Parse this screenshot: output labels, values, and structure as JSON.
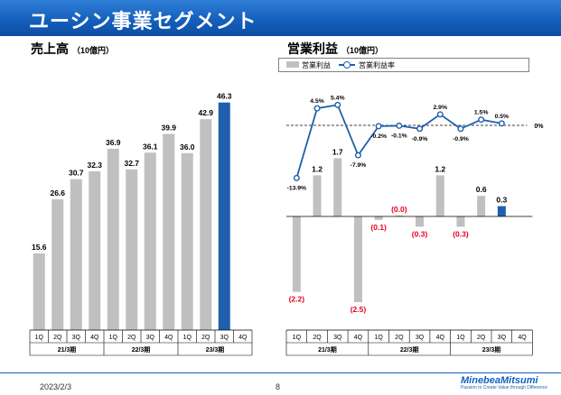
{
  "header": {
    "title": "ユーシン事業セグメント"
  },
  "sales": {
    "title": "売上高",
    "unit": "（10億円）"
  },
  "operating": {
    "title": "営業利益",
    "unit": "（10億円）"
  },
  "legend": {
    "bar_label": "営業利益",
    "line_label": "営業利益率"
  },
  "footer": {
    "date": "2023/2/3",
    "page": "8",
    "logo": "MinebeaMitsumi",
    "tagline": "Passion to Create Value through Difference"
  },
  "colors": {
    "bar": "#c0c0c0",
    "highlight": "#1f5fad",
    "line": "#1f5fad",
    "negative_label": "#e8001c"
  },
  "chart_data": [
    {
      "type": "bar",
      "title": "売上高",
      "categories": [
        "1Q",
        "2Q",
        "3Q",
        "4Q",
        "1Q",
        "2Q",
        "3Q",
        "4Q",
        "1Q",
        "2Q",
        "3Q",
        "4Q"
      ],
      "groups": [
        {
          "label": "21/3期",
          "count": 4
        },
        {
          "label": "22/3期",
          "count": 4
        },
        {
          "label": "23/3期",
          "count": 4
        }
      ],
      "values": [
        15.6,
        26.6,
        30.7,
        32.3,
        36.9,
        32.7,
        36.1,
        39.9,
        36.0,
        42.9,
        46.3,
        null
      ],
      "labels": [
        "15.6",
        "26.6",
        "30.7",
        "32.3",
        "36.9",
        "32.7",
        "36.1",
        "39.9",
        "36.0",
        "42.9",
        "46.3",
        ""
      ],
      "highlight_index": 10,
      "ylim": [
        0,
        50
      ]
    },
    {
      "type": "bar+line",
      "title": "営業利益",
      "categories": [
        "1Q",
        "2Q",
        "3Q",
        "4Q",
        "1Q",
        "2Q",
        "3Q",
        "4Q",
        "1Q",
        "2Q",
        "3Q",
        "4Q"
      ],
      "groups": [
        {
          "label": "21/3期",
          "count": 4
        },
        {
          "label": "22/3期",
          "count": 4
        },
        {
          "label": "23/3期",
          "count": 4
        }
      ],
      "bars": {
        "name": "営業利益",
        "values": [
          -2.2,
          1.2,
          1.7,
          -2.5,
          -0.1,
          -0.0,
          -0.3,
          1.2,
          -0.3,
          0.6,
          0.3,
          null
        ],
        "labels": [
          "(2.2)",
          "1.2",
          "1.7",
          "(2.5)",
          "(0.1)",
          "(0.0)",
          "(0.3)",
          "1.2",
          "(0.3)",
          "0.6",
          "0.3",
          ""
        ],
        "highlight_index": 10,
        "ylim": [
          -2.8,
          2.0
        ]
      },
      "line": {
        "name": "営業利益率",
        "values": [
          -13.9,
          4.5,
          5.4,
          -7.9,
          -0.2,
          -0.1,
          -0.9,
          2.9,
          -0.9,
          1.5,
          0.5,
          null
        ],
        "labels": [
          "-13.9%",
          "4.5%",
          "5.4%",
          "-7.9%",
          "-0.2%",
          "-0.1%",
          "-0.9%",
          "2.9%",
          "-0.9%",
          "1.5%",
          "0.5%",
          ""
        ],
        "zero_label": "0%",
        "ylim": [
          -14,
          6
        ]
      }
    }
  ]
}
